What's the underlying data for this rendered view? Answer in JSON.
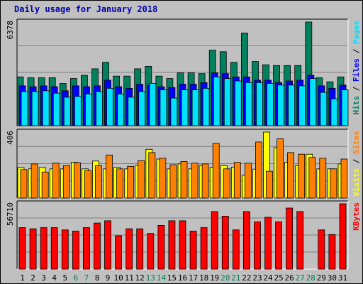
{
  "chart_data": {
    "type": "bar",
    "title": "Daily usage for January 2018",
    "days": [
      "1",
      "2",
      "3",
      "4",
      "5",
      "6",
      "7",
      "8",
      "9",
      "10",
      "11",
      "12",
      "13",
      "14",
      "15",
      "16",
      "17",
      "18",
      "19",
      "20",
      "21",
      "22",
      "23",
      "24",
      "25",
      "26",
      "27",
      "28",
      "29",
      "30",
      "31"
    ],
    "weekend_days": [
      "6",
      "7",
      "13",
      "14",
      "20",
      "21",
      "27",
      "28"
    ],
    "panels": [
      {
        "tick_label": "6378",
        "ymax": 6378,
        "side_labels": [
          {
            "text": "Hits",
            "color": "#00805c"
          },
          {
            "text": " / ",
            "color": "#000000"
          },
          {
            "text": "Files",
            "color": "#0000ff"
          },
          {
            "text": " / ",
            "color": "#000000"
          },
          {
            "text": "Pages",
            "color": "#00e0ff"
          }
        ],
        "series": [
          {
            "name": "Hits",
            "color": "#00805c",
            "values": [
              3000,
              2950,
              2950,
              2950,
              2600,
              2900,
              3100,
              3500,
              3900,
              3050,
              3050,
              3500,
              3650,
              3050,
              2900,
              3250,
              3250,
              3200,
              4650,
              4550,
              3900,
              5700,
              3950,
              3750,
              3700,
              3700,
              3700,
              6378,
              2950,
              2700,
              3000
            ]
          },
          {
            "name": "Files",
            "color": "#0000ff",
            "values": [
              2450,
              2400,
              2450,
              2400,
              2150,
              2450,
              2400,
              2450,
              2800,
              2400,
              2300,
              2550,
              2500,
              2400,
              2350,
              2550,
              2550,
              2650,
              3250,
              3200,
              3000,
              3000,
              2800,
              2800,
              2650,
              2750,
              2800,
              3100,
              2450,
              2300,
              2500
            ]
          },
          {
            "name": "Pages",
            "color": "#00e0ff",
            "values": [
              2100,
              2100,
              2150,
              2000,
              1750,
              1800,
              1950,
              2100,
              2300,
              1950,
              1750,
              2100,
              2600,
              2200,
              1700,
              2200,
              2200,
              2300,
              3000,
              2900,
              2750,
              2650,
              2650,
              2600,
              2500,
              2500,
              2450,
              2900,
              2050,
              1650,
              2200
            ]
          }
        ]
      },
      {
        "tick_label": "406",
        "ymax": 406,
        "side_labels": [
          {
            "text": "Visits",
            "color": "#ffff00"
          },
          {
            "text": " / ",
            "color": "#000000"
          },
          {
            "text": "Sites",
            "color": "#ff8000"
          }
        ],
        "series": [
          {
            "name": "Visits",
            "color": "#ffff00",
            "values": [
              188,
              180,
              188,
              180,
              180,
              220,
              180,
              228,
              180,
              190,
              180,
              200,
              300,
              240,
              180,
              210,
              180,
              200,
              190,
              200,
              190,
              140,
              178,
              406,
              310,
              220,
              200,
              270,
              180,
              180,
              210
            ]
          },
          {
            "name": "Sites",
            "color": "#ff8000",
            "values": [
              175,
              210,
              160,
              215,
              200,
              218,
              170,
              200,
              265,
              180,
              195,
              230,
              280,
              245,
              205,
              225,
              215,
              210,
              336,
              180,
              220,
              215,
              345,
              165,
              365,
              280,
              270,
              250,
              245,
              180,
              240
            ]
          }
        ]
      },
      {
        "tick_label": "56710",
        "ymax": 56710,
        "side_labels": [
          {
            "text": "KBytes",
            "color": "#ff0000"
          }
        ],
        "series": [
          {
            "name": "KBytes",
            "color": "#ff0000",
            "values": [
              36000,
              35000,
              36000,
              36000,
              34000,
              33000,
              36000,
              40000,
              42000,
              29000,
              35000,
              35000,
              31000,
              38000,
              42000,
              42000,
              33000,
              36000,
              50000,
              46000,
              34000,
              50000,
              41000,
              45000,
              41000,
              53000,
              50000,
              0,
              34000,
              30000,
              56710
            ]
          }
        ]
      }
    ]
  }
}
